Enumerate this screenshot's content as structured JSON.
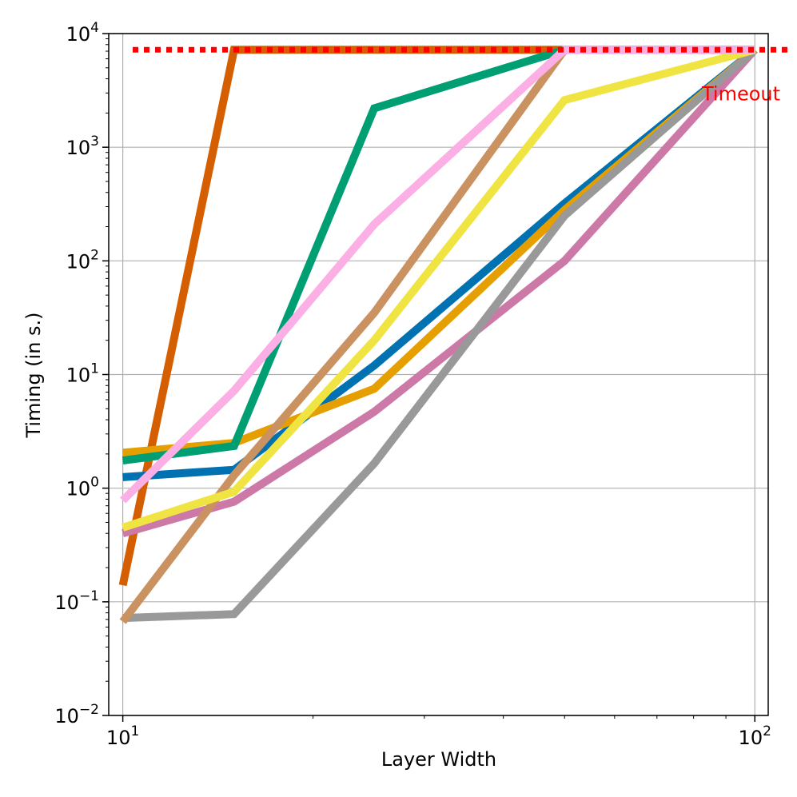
{
  "chart_data": {
    "type": "line",
    "title": "",
    "xlabel": "Layer Width",
    "ylabel": "Timing (in s.)",
    "xscale": "log",
    "yscale": "log",
    "xlim": [
      9.5,
      105
    ],
    "ylim": [
      0.01,
      10000
    ],
    "grid": true,
    "x": [
      10,
      15,
      25,
      50,
      100
    ],
    "x_ticks": [
      {
        "value": 10,
        "base": "10",
        "exp": "1"
      },
      {
        "value": 100,
        "base": "10",
        "exp": "2"
      }
    ],
    "y_ticks": [
      {
        "value": 0.01,
        "base": "10",
        "exp": "−2"
      },
      {
        "value": 0.1,
        "base": "10",
        "exp": "−1"
      },
      {
        "value": 1,
        "base": "10",
        "exp": "0"
      },
      {
        "value": 10,
        "base": "10",
        "exp": "1"
      },
      {
        "value": 100,
        "base": "10",
        "exp": "2"
      },
      {
        "value": 1000,
        "base": "10",
        "exp": "3"
      },
      {
        "value": 10000,
        "base": "10",
        "exp": "4"
      }
    ],
    "timeout": {
      "value": 7200,
      "label": "Timeout",
      "color": "#ff0000"
    },
    "series": [
      {
        "color": "#d55e00",
        "values": [
          0.14,
          7200,
          7200,
          7200,
          7200
        ]
      },
      {
        "color": "#0072b2",
        "values": [
          1.25,
          1.45,
          12,
          320,
          7200
        ]
      },
      {
        "color": "#e69f00",
        "values": [
          2.05,
          2.5,
          7.5,
          280,
          7200
        ]
      },
      {
        "color": "#009e73",
        "values": [
          1.75,
          2.35,
          2200,
          7200,
          7200
        ]
      },
      {
        "color": "#cc79a7",
        "values": [
          0.4,
          0.76,
          4.7,
          100,
          7200
        ]
      },
      {
        "color": "#999999",
        "values": [
          0.072,
          0.078,
          1.65,
          250,
          7200
        ]
      },
      {
        "color": "#ca9161",
        "values": [
          0.067,
          1.3,
          35,
          7200,
          7200
        ]
      },
      {
        "color": "#f0e442",
        "values": [
          0.45,
          0.93,
          20,
          2600,
          7200
        ]
      },
      {
        "color": "#fbafe4",
        "values": [
          0.78,
          7.2,
          210,
          7200,
          7200
        ]
      }
    ]
  }
}
